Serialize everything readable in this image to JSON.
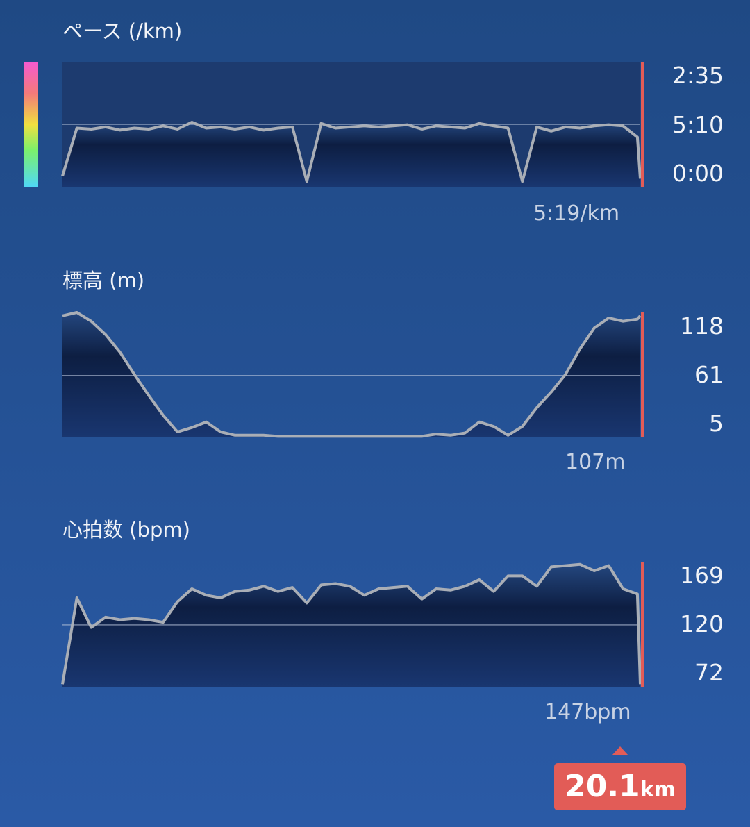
{
  "badge": {
    "value": "20.1",
    "unit": "km",
    "color": "#e25c57"
  },
  "chart_data": [
    {
      "type": "area",
      "title": "ペース (/km)",
      "y_scale": "reciprocal",
      "ytick_labels": [
        "2:35",
        "5:10",
        "0:00"
      ],
      "summary": "5:19/km",
      "colorbar": true,
      "x_km": [
        0,
        0.5,
        1,
        1.5,
        2,
        2.5,
        3,
        3.5,
        4,
        4.5,
        5,
        5.5,
        6,
        6.5,
        7,
        7.5,
        8,
        8.5,
        9,
        9.5,
        10,
        10.5,
        11,
        11.5,
        12,
        12.5,
        13,
        13.5,
        14,
        14.5,
        15,
        15.5,
        16,
        16.5,
        17,
        17.5,
        18,
        18.5,
        19,
        19.5,
        20,
        20.1
      ],
      "pace_min_per_km": [
        30,
        5.5,
        5.6,
        5.4,
        5.7,
        5.5,
        5.6,
        5.3,
        5.6,
        5.0,
        5.5,
        5.4,
        5.6,
        5.4,
        5.7,
        5.5,
        5.4,
        60,
        5.1,
        5.5,
        5.4,
        5.3,
        5.4,
        5.3,
        5.2,
        5.6,
        5.3,
        5.4,
        5.5,
        5.1,
        5.3,
        5.5,
        60,
        5.4,
        5.8,
        5.4,
        5.5,
        5.3,
        5.2,
        5.3,
        6.5,
        40
      ],
      "reference_line": "5:10",
      "marker_km": 20.1
    },
    {
      "type": "area",
      "title": "標高 (m)",
      "ytick_labels": [
        "118",
        "61",
        "5"
      ],
      "ylim": [
        5,
        118
      ],
      "summary": "107m",
      "x_km": [
        0,
        0.5,
        1,
        1.5,
        2,
        2.5,
        3,
        3.5,
        4,
        4.5,
        5,
        5.5,
        6,
        6.5,
        7,
        7.5,
        8,
        8.5,
        9,
        9.5,
        10,
        10.5,
        11,
        11.5,
        12,
        12.5,
        13,
        13.5,
        14,
        14.5,
        15,
        15.5,
        16,
        16.5,
        17,
        17.5,
        18,
        18.5,
        19,
        19.5,
        20,
        20.1
      ],
      "values": [
        115,
        118,
        110,
        98,
        82,
        62,
        43,
        25,
        10,
        14,
        19,
        10,
        7,
        7,
        7,
        6,
        6,
        6,
        6,
        6,
        6,
        6,
        6,
        6,
        6,
        6,
        8,
        7,
        9,
        19,
        15,
        7,
        15,
        32,
        46,
        62,
        85,
        104,
        113,
        110,
        112,
        115
      ],
      "reference_line": 61,
      "marker_km": 20.1
    },
    {
      "type": "area",
      "title": "心拍数 (bpm)",
      "ytick_labels": [
        "169",
        "120",
        "72"
      ],
      "ylim": [
        72,
        169
      ],
      "summary": "147bpm",
      "x_km": [
        0,
        0.5,
        1,
        1.5,
        2,
        2.5,
        3,
        3.5,
        4,
        4.5,
        5,
        5.5,
        6,
        6.5,
        7,
        7.5,
        8,
        8.5,
        9,
        9.5,
        10,
        10.5,
        11,
        11.5,
        12,
        12.5,
        13,
        13.5,
        14,
        14.5,
        15,
        15.5,
        16,
        16.5,
        17,
        17.5,
        18,
        18.5,
        19,
        19.5,
        20,
        20.1
      ],
      "values": [
        74,
        141,
        118,
        126,
        124,
        125,
        124,
        122,
        138,
        148,
        143,
        141,
        146,
        147,
        150,
        146,
        149,
        137,
        151,
        152,
        150,
        143,
        148,
        149,
        150,
        140,
        148,
        147,
        150,
        155,
        146,
        158,
        158,
        150,
        165,
        166,
        167,
        162,
        166,
        148,
        144,
        74
      ],
      "reference_line": 120,
      "marker_km": 20.1
    }
  ]
}
